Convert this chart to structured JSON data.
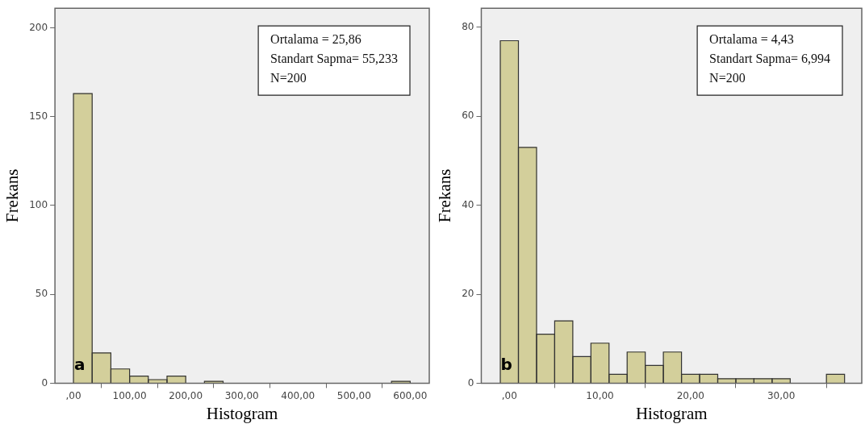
{
  "chart_data": [
    {
      "type": "histogram",
      "xlabel": "Histogram",
      "ylabel": "Frekans",
      "color": "#d3cf9b",
      "bins": [
        0,
        33.3,
        66.7,
        100,
        133.3,
        166.7,
        200,
        233.3,
        266.7,
        300,
        333.3,
        366.7,
        400,
        433.3,
        466.7,
        500,
        533.3,
        566.7,
        600
      ],
      "values": [
        163,
        17,
        8,
        4,
        2,
        4,
        0,
        1,
        0,
        0,
        0,
        0,
        0,
        0,
        0,
        0,
        0,
        1
      ],
      "xlim": [
        -33,
        634
      ],
      "ylim": [
        0,
        211
      ],
      "xticks": [
        {
          "value": 0,
          "label": ",00"
        },
        {
          "value": 100,
          "label": "100,00"
        },
        {
          "value": 200,
          "label": "200,00"
        },
        {
          "value": 300,
          "label": "300,00"
        },
        {
          "value": 400,
          "label": "400,00"
        },
        {
          "value": 500,
          "label": "500,00"
        },
        {
          "value": 600,
          "label": "600,00"
        }
      ],
      "yticks": [
        0,
        50,
        100,
        150,
        200
      ],
      "grid": false,
      "annotations": [
        "a",
        "Ortalama = 25,86",
        "Standart Sapma= 55,233",
        "N=200"
      ]
    },
    {
      "type": "histogram",
      "xlabel": "Histogram",
      "ylabel": "Frekans",
      "color": "#d3cf9b",
      "bins": [
        -1,
        1,
        3,
        5,
        7,
        9,
        11,
        13,
        15,
        17,
        19,
        21,
        23,
        25,
        27,
        29,
        31,
        33,
        35,
        37
      ],
      "values": [
        77,
        53,
        11,
        14,
        6,
        9,
        2,
        7,
        4,
        7,
        2,
        2,
        1,
        1,
        1,
        1,
        0,
        0,
        2
      ],
      "xlim": [
        -3.1,
        38.9
      ],
      "ylim": [
        0,
        84.3
      ],
      "xticks": [
        {
          "value": 0,
          "label": ",00"
        },
        {
          "value": 10,
          "label": "10,00"
        },
        {
          "value": 20,
          "label": "20,00"
        },
        {
          "value": 30,
          "label": "30,00"
        }
      ],
      "yticks": [
        0,
        20,
        40,
        60,
        80
      ],
      "grid": false,
      "annotations": [
        "b",
        "Ortalama = 4,43",
        "Standart Sapma= 6,994",
        "N=200"
      ]
    }
  ]
}
